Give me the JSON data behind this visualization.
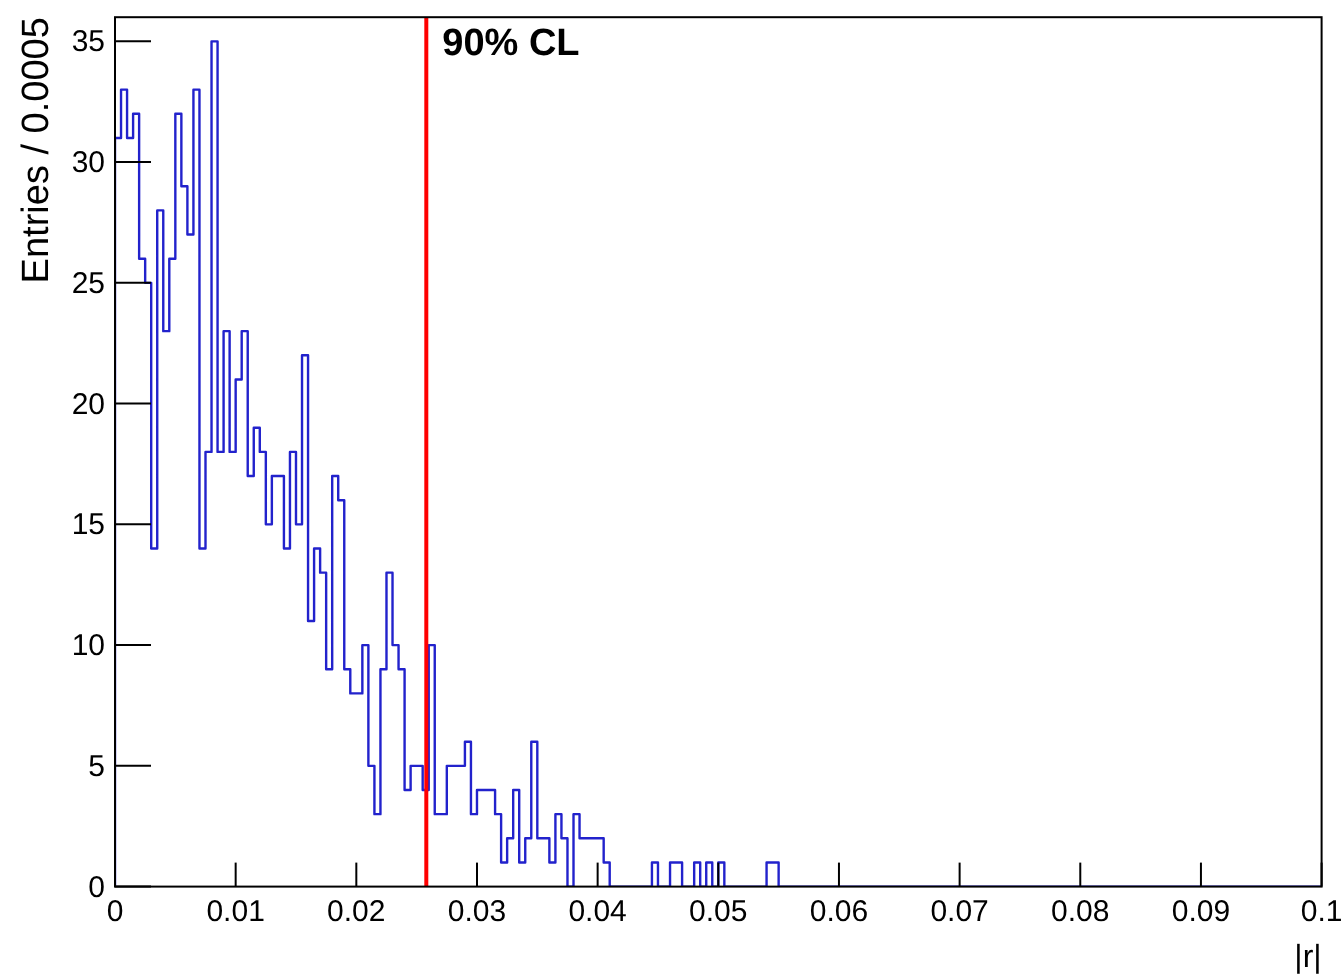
{
  "chart_data": {
    "type": "histogram",
    "xlabel": "|r|",
    "ylabel": "Entries / 0.0005",
    "bins": [
      0,
      0.0005,
      0.001,
      0.0015,
      0.002,
      0.0025,
      0.003,
      0.0035,
      0.004,
      0.0045,
      0.005,
      0.0055,
      0.006,
      0.0065,
      0.007,
      0.0075,
      0.008,
      0.0085,
      0.009,
      0.0095,
      0.01,
      0.0105,
      0.011,
      0.0115,
      0.012,
      0.0125,
      0.013,
      0.0135,
      0.014,
      0.0145,
      0.015,
      0.0155,
      0.016,
      0.0165,
      0.017,
      0.0175,
      0.018,
      0.0185,
      0.019,
      0.0195,
      0.02,
      0.0205,
      0.021,
      0.0215,
      0.022,
      0.0225,
      0.023,
      0.0235,
      0.024,
      0.0245,
      0.025,
      0.0255,
      0.026,
      0.0265,
      0.027,
      0.0275,
      0.028,
      0.0285,
      0.029,
      0.0295,
      0.03,
      0.0305,
      0.031,
      0.0315,
      0.032,
      0.0325,
      0.033,
      0.0335,
      0.034,
      0.0345,
      0.035,
      0.0355,
      0.036,
      0.0365,
      0.037,
      0.0375,
      0.038,
      0.0385,
      0.039,
      0.0395,
      0.04,
      0.0405,
      0.041,
      0.0415,
      0.042,
      0.0425,
      0.043,
      0.0435,
      0.044,
      0.0445,
      0.045,
      0.0455,
      0.046,
      0.0465,
      0.047,
      0.0475,
      0.048,
      0.0485,
      0.049,
      0.0495,
      0.05,
      0.0505,
      0.051,
      0.0515,
      0.052,
      0.0525,
      0.053,
      0.0535,
      0.054,
      0.0545,
      0.055,
      0.0555,
      0.056,
      0.0565,
      0.057,
      0.0575,
      0.058,
      0.0585,
      0.059,
      0.0595,
      0.06,
      0.0605,
      0.061,
      0.0615,
      0.062,
      0.0625,
      0.063,
      0.0635,
      0.064,
      0.0645,
      0.065,
      0.0655,
      0.066,
      0.0665,
      0.067,
      0.0675,
      0.068,
      0.0685,
      0.069,
      0.0695,
      0.07,
      0.0705,
      0.071,
      0.0715,
      0.072,
      0.0725,
      0.073,
      0.0735,
      0.074,
      0.0745,
      0.075,
      0.0755,
      0.076,
      0.0765,
      0.077,
      0.0775,
      0.078,
      0.0785,
      0.079,
      0.0795,
      0.08,
      0.0805,
      0.081,
      0.0815,
      0.082,
      0.0825,
      0.083,
      0.0835,
      0.084,
      0.0845,
      0.085,
      0.0855,
      0.086,
      0.0865,
      0.087,
      0.0875,
      0.088,
      0.0885,
      0.089,
      0.0895,
      0.09,
      0.0905,
      0.091,
      0.0915,
      0.092,
      0.0925,
      0.093,
      0.0935,
      0.094,
      0.0945,
      0.095,
      0.0955,
      0.096,
      0.0965,
      0.097,
      0.0975,
      0.098,
      0.0985,
      0.099,
      0.0995,
      0.1
    ],
    "values": [
      31,
      33,
      31,
      32,
      26,
      25,
      14,
      28,
      23,
      26,
      32,
      29,
      27,
      33,
      14,
      18,
      35,
      18,
      23,
      18,
      21,
      23,
      17,
      19,
      18,
      15,
      17,
      17,
      14,
      18,
      15,
      22,
      11,
      14,
      13,
      9,
      17,
      16,
      9,
      8,
      8,
      10,
      5,
      3,
      9,
      13,
      10,
      9,
      4,
      5,
      5,
      4,
      10,
      3,
      3,
      5,
      5,
      5,
      6,
      3,
      4,
      4,
      4,
      3,
      1,
      2,
      4,
      1,
      2,
      6,
      2,
      2,
      1,
      3,
      2,
      0,
      3,
      2,
      2,
      2,
      2,
      1,
      0,
      0,
      0,
      0,
      0,
      0,
      0,
      1,
      0,
      0,
      1,
      1,
      0,
      0,
      1,
      0,
      1,
      0,
      1,
      0,
      0,
      0,
      0,
      0,
      0,
      0,
      1,
      1,
      0,
      0,
      0,
      0,
      0,
      0,
      0,
      0,
      0,
      0,
      0,
      0,
      0,
      0,
      0,
      0,
      0,
      0,
      0,
      0,
      0,
      0,
      0,
      0,
      0,
      0,
      0,
      0,
      0,
      0,
      0,
      0,
      0,
      0,
      0,
      0,
      0,
      0,
      0,
      0,
      0,
      0,
      0,
      0,
      0,
      0,
      0,
      0,
      0,
      0,
      0,
      0,
      0,
      0,
      0,
      0,
      0,
      0,
      0,
      0,
      0,
      0,
      0,
      0,
      0,
      0,
      0,
      0,
      0,
      0,
      0,
      0,
      0,
      0,
      0,
      0,
      0,
      0,
      0,
      0,
      0,
      0,
      0,
      0,
      0,
      0,
      0,
      0,
      0,
      0
    ],
    "color": "#2222cc",
    "xlim": [
      0,
      0.1
    ],
    "xticks": [
      0,
      0.01,
      0.02,
      0.03,
      0.04,
      0.05,
      0.06,
      0.07,
      0.08,
      0.09,
      0.1
    ],
    "ylim": [
      0,
      36
    ],
    "yticks": [
      0,
      5,
      10,
      15,
      20,
      25,
      30,
      35
    ],
    "ref_lines": [
      {
        "axis": "x",
        "value": 0.0258,
        "label": "90% CL",
        "color": "#ff0000"
      }
    ],
    "grid": false
  }
}
